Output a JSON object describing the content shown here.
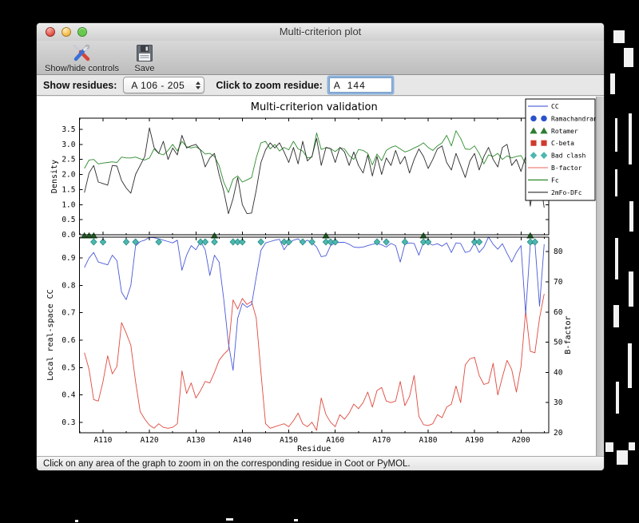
{
  "window": {
    "title": "Multi-criterion plot"
  },
  "toolbar": {
    "buttons": [
      {
        "label": "Show/hide controls",
        "icon": "tools-icon"
      },
      {
        "label": "Save",
        "icon": "save-icon"
      }
    ]
  },
  "controls": {
    "show_residues_label": "Show residues:",
    "show_residues_value": "A 106 - 205",
    "zoom_residue_label": "Click to zoom residue:",
    "zoom_residue_value": "A  144"
  },
  "status_bar": {
    "text": "Click on any area of the graph to zoom in on the corresponding residue in Coot or PyMOL."
  },
  "chart_data": {
    "type": "line",
    "title": "Multi-criterion validation",
    "xlabel": "Residue",
    "x_start": 106,
    "x_end": 205,
    "xlim": [
      104.9,
      206.0
    ],
    "x_ticks": {
      "values": [
        110,
        120,
        130,
        140,
        150,
        160,
        170,
        180,
        190,
        200
      ],
      "labels": [
        "A110",
        "A120",
        "A130",
        "A140",
        "A150",
        "A160",
        "A170",
        "A180",
        "A190",
        "A200"
      ]
    },
    "top_plot": {
      "ylabel": "Density",
      "ylim": [
        0,
        3.87
      ],
      "yticks": {
        "values": [
          0,
          0.5,
          1.0,
          1.5,
          2.0,
          2.5,
          3.0,
          3.5
        ],
        "labels": [
          "0.0",
          "0.5",
          "1.0",
          "1.5",
          "2.0",
          "2.5",
          "3.0",
          "3.5"
        ]
      },
      "series": [
        {
          "name": "Fc",
          "color": "#2e8b2e",
          "values": [
            2.2,
            2.48,
            2.5,
            2.35,
            2.38,
            2.4,
            2.42,
            2.4,
            2.58,
            2.55,
            2.55,
            2.58,
            2.52,
            2.48,
            2.55,
            2.85,
            2.7,
            2.65,
            2.8,
            3.0,
            2.78,
            3.1,
            2.92,
            2.88,
            2.92,
            2.82,
            2.68,
            2.7,
            2.6,
            2.3,
            1.75,
            1.4,
            1.85,
            1.95,
            1.75,
            1.82,
            1.9,
            2.55,
            3.05,
            3.1,
            2.85,
            3.0,
            2.78,
            2.9,
            2.82,
            3.1,
            2.85,
            2.78,
            2.55,
            2.58,
            3.38,
            2.83,
            2.89,
            2.86,
            2.76,
            2.89,
            2.85,
            2.63,
            2.5,
            2.83,
            2.8,
            2.7,
            2.32,
            2.68,
            2.46,
            2.8,
            2.9,
            2.95,
            2.85,
            2.75,
            2.8,
            2.88,
            2.95,
            3.05,
            2.9,
            2.8,
            2.95,
            3.05,
            3.3,
            2.95,
            3.45,
            3.2,
            2.85,
            2.83,
            2.95,
            2.7,
            2.35,
            2.65,
            2.6,
            2.7,
            2.5,
            2.62,
            2.55,
            2.6,
            2.63,
            2.35,
            2.3,
            2.75,
            2.95,
            3.0
          ]
        },
        {
          "name": "2mFo-DFc",
          "color": "#2b2b2b",
          "values": [
            1.4,
            2.05,
            2.3,
            1.75,
            1.7,
            1.65,
            2.3,
            2.28,
            1.8,
            1.55,
            1.38,
            2.0,
            2.3,
            2.6,
            3.55,
            2.9,
            2.7,
            3.1,
            2.5,
            2.88,
            2.65,
            3.3,
            2.88,
            2.95,
            3.0,
            2.8,
            2.25,
            2.55,
            2.7,
            2.0,
            1.45,
            0.7,
            1.2,
            1.9,
            1.0,
            0.7,
            0.72,
            1.48,
            2.4,
            2.82,
            3.05,
            2.88,
            3.05,
            2.75,
            2.4,
            2.9,
            2.35,
            3.1,
            2.45,
            2.6,
            3.2,
            2.3,
            2.9,
            2.86,
            2.4,
            2.9,
            2.75,
            2.3,
            2.75,
            2.3,
            2.05,
            2.65,
            1.95,
            2.6,
            2.0,
            2.55,
            2.3,
            2.8,
            2.35,
            2.6,
            2.05,
            2.5,
            2.85,
            2.6,
            2.2,
            2.5,
            2.85,
            2.95,
            2.4,
            2.15,
            2.7,
            2.3,
            1.9,
            2.45,
            2.7,
            2.15,
            2.6,
            2.9,
            2.5,
            2.25,
            2.9,
            3.0,
            2.3,
            2.5,
            2.1,
            2.6,
            0.95,
            1.9,
            1.95,
            0.9
          ]
        }
      ]
    },
    "bottom_plot": {
      "left_axis": {
        "label": "Local real-space CC",
        "color": "#3b4cc8",
        "ylim": [
          0.262,
          0.976
        ],
        "yticks": {
          "values": [
            0.3,
            0.4,
            0.5,
            0.6,
            0.7,
            0.8,
            0.9
          ],
          "labels": [
            "0.3",
            "0.4",
            "0.5",
            "0.6",
            "0.7",
            "0.8",
            "0.9"
          ]
        }
      },
      "right_axis": {
        "label": "B-factor",
        "color": "#e0493f",
        "ylim": [
          20,
          84.8
        ],
        "yticks": {
          "values": [
            20,
            30,
            40,
            50,
            60,
            70,
            80
          ],
          "labels": [
            "20",
            "30",
            "40",
            "50",
            "60",
            "70",
            "80"
          ]
        }
      },
      "series": [
        {
          "name": "CC",
          "axis": "left",
          "color": "#4a5ad8",
          "values": [
            0.865,
            0.9,
            0.92,
            0.885,
            0.88,
            0.875,
            0.91,
            0.89,
            0.775,
            0.748,
            0.8,
            0.944,
            0.96,
            0.965,
            0.975,
            0.974,
            0.97,
            0.965,
            0.96,
            0.955,
            0.965,
            0.855,
            0.91,
            0.945,
            0.93,
            0.96,
            0.93,
            0.836,
            0.91,
            0.885,
            0.75,
            0.588,
            0.49,
            0.68,
            0.734,
            0.72,
            0.73,
            0.83,
            0.928,
            0.955,
            0.96,
            0.965,
            0.968,
            0.93,
            0.955,
            0.965,
            0.97,
            0.955,
            0.965,
            0.957,
            0.94,
            0.905,
            0.908,
            0.945,
            0.955,
            0.957,
            0.957,
            0.95,
            0.94,
            0.938,
            0.94,
            0.945,
            0.95,
            0.953,
            0.948,
            0.94,
            0.953,
            0.945,
            0.885,
            0.95,
            0.955,
            0.953,
            0.91,
            0.958,
            0.955,
            0.947,
            0.952,
            0.943,
            0.955,
            0.92,
            0.955,
            0.953,
            0.92,
            0.925,
            0.955,
            0.92,
            0.94,
            0.977,
            0.95,
            0.932,
            0.952,
            0.917,
            0.885,
            0.92,
            0.945,
            0.695,
            0.95,
            0.955,
            0.724,
            0.95
          ]
        },
        {
          "name": "B-factor",
          "axis": "right",
          "color": "#e0493f",
          "values": [
            46.5,
            41,
            31,
            30.5,
            37,
            45.5,
            39.5,
            42,
            56.5,
            53,
            49,
            37,
            27,
            24.5,
            22.5,
            21.5,
            23,
            21.8,
            21.5,
            21.8,
            23,
            40.5,
            33,
            36.5,
            31.5,
            34,
            37,
            36.5,
            40,
            44,
            46,
            47.5,
            64,
            61,
            64.5,
            62.5,
            63.5,
            58,
            40,
            23,
            21.5,
            22,
            22.5,
            23,
            22,
            24,
            26.5,
            23,
            22,
            23.5,
            20.8,
            31.5,
            26,
            23.5,
            22,
            26,
            24.5,
            26.5,
            29.5,
            28,
            30,
            33.5,
            28.5,
            34,
            35,
            30.5,
            30,
            30.5,
            37,
            29,
            32,
            39,
            25.5,
            22.7,
            22.4,
            23,
            26,
            25,
            28.5,
            29.5,
            35.5,
            30,
            42.5,
            44.5,
            45,
            39,
            36,
            36.5,
            43,
            32.5,
            38.5,
            44,
            41,
            33.5,
            42,
            60.5,
            47,
            46.5,
            58,
            66
          ]
        }
      ]
    },
    "outlier_markers": [
      {
        "name": "Ramachandran",
        "shape": "circle",
        "color": "#2a52cc",
        "edge": "#16307f",
        "residues": []
      },
      {
        "name": "Rotamer",
        "shape": "triangle",
        "color": "#2e7d32",
        "edge": "#174a1b",
        "residues": [
          106,
          107,
          108,
          134,
          158,
          179,
          202
        ]
      },
      {
        "name": "C-beta",
        "shape": "square",
        "color": "#d0392e",
        "edge": "#7f1f18",
        "residues": []
      },
      {
        "name": "Bad clash",
        "shape": "diamond",
        "color": "#4cb8b0",
        "edge": "#23857d",
        "residues": [
          108,
          110,
          115,
          117,
          122,
          131,
          132,
          134,
          138,
          139,
          140,
          144,
          149,
          150,
          153,
          155,
          158,
          159,
          160,
          169,
          171,
          175,
          179,
          180,
          190,
          191,
          202,
          203
        ]
      }
    ],
    "legend": {
      "position": "upper right",
      "entries": [
        {
          "label": "CC",
          "swatch": "line",
          "color": "#5a6ad8"
        },
        {
          "label": "Ramachandran",
          "swatch": "circle",
          "color": "#2a52cc"
        },
        {
          "label": "Rotamer",
          "swatch": "triangle",
          "color": "#2e7d32"
        },
        {
          "label": "C-beta",
          "swatch": "square",
          "color": "#d0392e"
        },
        {
          "label": "Bad clash",
          "swatch": "diamond",
          "color": "#4cb8b0"
        },
        {
          "label": "B-factor",
          "swatch": "line",
          "color": "#f0857c"
        },
        {
          "label": "Fc",
          "swatch": "line",
          "color": "#2e8b2e"
        },
        {
          "label": "2mFo-DFc",
          "swatch": "line",
          "color": "#2b2b2b"
        }
      ]
    }
  }
}
